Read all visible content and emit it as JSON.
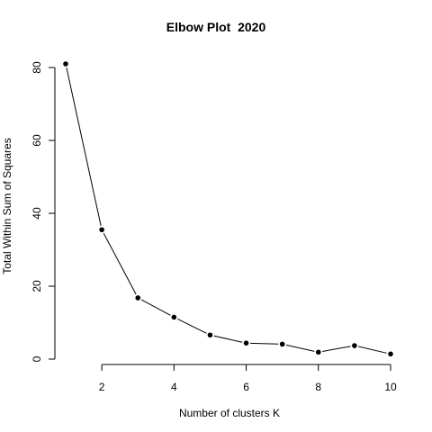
{
  "chart_data": {
    "type": "line",
    "title": "Elbow Plot  2020",
    "xlabel": "Number of clusters K",
    "ylabel": "Total Within Sum of Squares",
    "x": [
      1,
      2,
      3,
      4,
      5,
      6,
      7,
      8,
      9,
      10
    ],
    "y": [
      81.0,
      35.5,
      16.8,
      11.5,
      6.6,
      4.4,
      4.1,
      1.9,
      3.7,
      1.4
    ],
    "xlim": [
      1,
      10
    ],
    "ylim": [
      0,
      81
    ],
    "xticks": [
      2,
      4,
      6,
      8,
      10
    ],
    "yticks": [
      0,
      20,
      40,
      60,
      80
    ],
    "grid": false,
    "legend": "none",
    "line_color": "#000000",
    "point_color": "#000000"
  }
}
